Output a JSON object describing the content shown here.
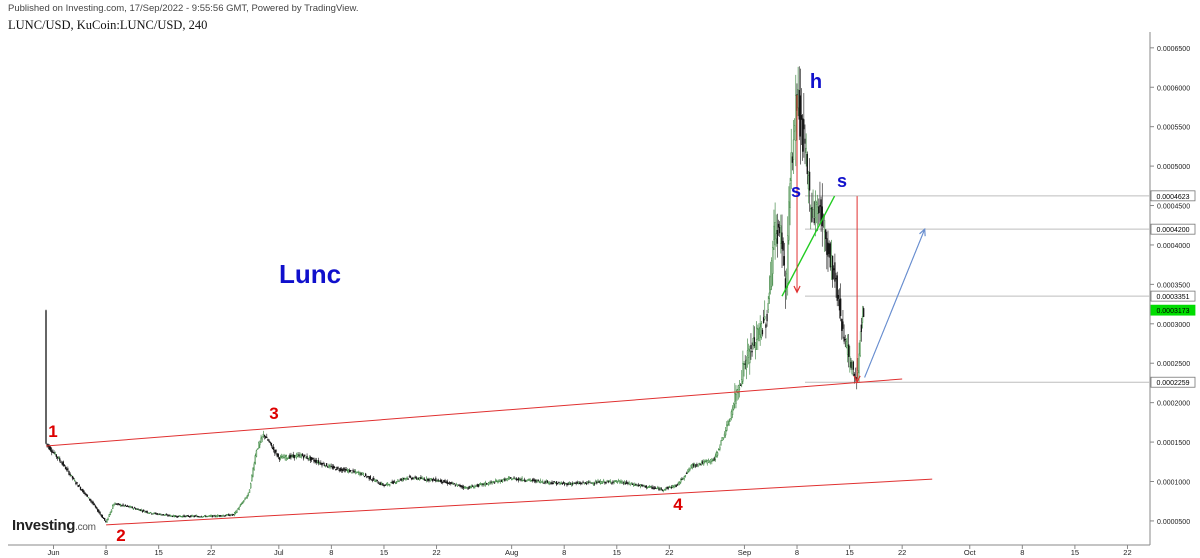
{
  "header": {
    "published": "Published on Investing.com, 17/Sep/2022 - 9:55:56 GMT, Powered by TradingView.",
    "symbol_line": "LUNC/USD, KuCoin:LUNC/USD, 240"
  },
  "brand": {
    "name": "Investing",
    "suffix": ".com"
  },
  "chart_data": {
    "type": "candlestick",
    "title": "Lunc",
    "x_ticks": [
      "Jun",
      "8",
      "15",
      "22",
      "Jul",
      "8",
      "15",
      "22",
      "Aug",
      "8",
      "15",
      "22",
      "Sep",
      "8",
      "15",
      "22",
      "Oct",
      "8",
      "15",
      "22"
    ],
    "y_ticks": [
      "0.0000500",
      "0.0001000",
      "0.0001500",
      "0.0002000",
      "0.0002500",
      "0.0003000",
      "0.0003500",
      "0.0004000",
      "0.0004500",
      "0.0005000",
      "0.0005500",
      "0.0006000",
      "0.0006500"
    ],
    "y_range": [
      2.2e-05,
      0.000665
    ],
    "price_labels": [
      {
        "text": "0.0004623",
        "value": 0.0004623,
        "highlight": false
      },
      {
        "text": "0.0004200",
        "value": 0.00042,
        "highlight": false
      },
      {
        "text": "0.0003351",
        "value": 0.0003351,
        "highlight": false
      },
      {
        "text": "0.0003173",
        "value": 0.0003173,
        "highlight": true
      },
      {
        "text": "0.0002259",
        "value": 0.0002259,
        "highlight": false
      }
    ],
    "price_series": [
      [
        "2022-05-31",
        0.000148
      ],
      [
        "2022-06-02",
        0.000125
      ],
      [
        "2022-06-04",
        9.8e-05
      ],
      [
        "2022-06-06",
        7.5e-05
      ],
      [
        "2022-06-08",
        4.8e-05
      ],
      [
        "2022-06-09",
        7.2e-05
      ],
      [
        "2022-06-11",
        6.8e-05
      ],
      [
        "2022-06-14",
        6e-05
      ],
      [
        "2022-06-17",
        5.6e-05
      ],
      [
        "2022-06-22",
        5.6e-05
      ],
      [
        "2022-06-25",
        5.8e-05
      ],
      [
        "2022-06-27",
        8.5e-05
      ],
      [
        "2022-06-28",
        0.00014
      ],
      [
        "2022-06-29",
        0.00016
      ],
      [
        "2022-07-01",
        0.00013
      ],
      [
        "2022-07-04",
        0.000133
      ],
      [
        "2022-07-08",
        0.000118
      ],
      [
        "2022-07-12",
        0.00011
      ],
      [
        "2022-07-15",
        9.5e-05
      ],
      [
        "2022-07-18",
        0.000105
      ],
      [
        "2022-07-22",
        0.000102
      ],
      [
        "2022-07-26",
        9.2e-05
      ],
      [
        "2022-08-01",
        0.000104
      ],
      [
        "2022-08-08",
        9.7e-05
      ],
      [
        "2022-08-15",
        0.0001
      ],
      [
        "2022-08-21",
        9e-05
      ],
      [
        "2022-08-23",
        9.5e-05
      ],
      [
        "2022-08-25",
        0.00012
      ],
      [
        "2022-08-28",
        0.000128
      ],
      [
        "2022-08-30",
        0.000178
      ],
      [
        "2022-09-01",
        0.00025
      ],
      [
        "2022-09-02",
        0.00027
      ],
      [
        "2022-09-04",
        0.00031
      ],
      [
        "2022-09-05",
        0.00042
      ],
      [
        "2022-09-06",
        0.00041
      ],
      [
        "2022-09-06T12",
        0.000335
      ],
      [
        "2022-09-07",
        0.00047
      ],
      [
        "2022-09-08",
        0.00059
      ],
      [
        "2022-09-09",
        0.00052
      ],
      [
        "2022-09-10",
        0.00044
      ],
      [
        "2022-09-11",
        0.00045
      ],
      [
        "2022-09-12",
        0.0004
      ],
      [
        "2022-09-13",
        0.00036
      ],
      [
        "2022-09-14",
        0.0003
      ],
      [
        "2022-09-15",
        0.00025
      ],
      [
        "2022-09-16",
        0.00023
      ],
      [
        "2022-09-16T12",
        0.0003
      ],
      [
        "2022-09-17",
        0.000317
      ]
    ],
    "annotations": [
      {
        "id": "1",
        "text": "1",
        "color": "#dd0000"
      },
      {
        "id": "2",
        "text": "2",
        "color": "#dd0000"
      },
      {
        "id": "3",
        "text": "3",
        "color": "#dd0000"
      },
      {
        "id": "4",
        "text": "4",
        "color": "#dd0000"
      },
      {
        "id": "h",
        "text": "h",
        "color": "#1111cc"
      },
      {
        "id": "s1",
        "text": "s",
        "color": "#1111cc"
      },
      {
        "id": "s2",
        "text": "s",
        "color": "#1111cc"
      }
    ],
    "trend_lines": [
      {
        "name": "upper-channel",
        "color": "#e03030",
        "from": [
          "2022-05-31",
          0.000145
        ],
        "to": [
          "2022-09-22",
          0.00023
        ]
      },
      {
        "name": "lower-channel",
        "color": "#e03030",
        "from": [
          "2022-06-08",
          4.5e-05
        ],
        "to": [
          "2022-09-26",
          0.000103
        ]
      },
      {
        "name": "neckline",
        "color": "#22cc22",
        "from": [
          "2022-09-06",
          0.000335
        ],
        "to": [
          "2022-09-13",
          0.000462
        ]
      },
      {
        "name": "projection",
        "color": "#6a8fd0",
        "from": [
          "2022-09-17",
          0.000232
        ],
        "to": [
          "2022-09-25",
          0.00042
        ]
      }
    ],
    "colors": {
      "up": "#2e7d32",
      "down": "#111111",
      "channel": "#e03030",
      "neckline": "#22cc22",
      "projection": "#6a8fd0",
      "current_price": "#00dd00"
    }
  }
}
